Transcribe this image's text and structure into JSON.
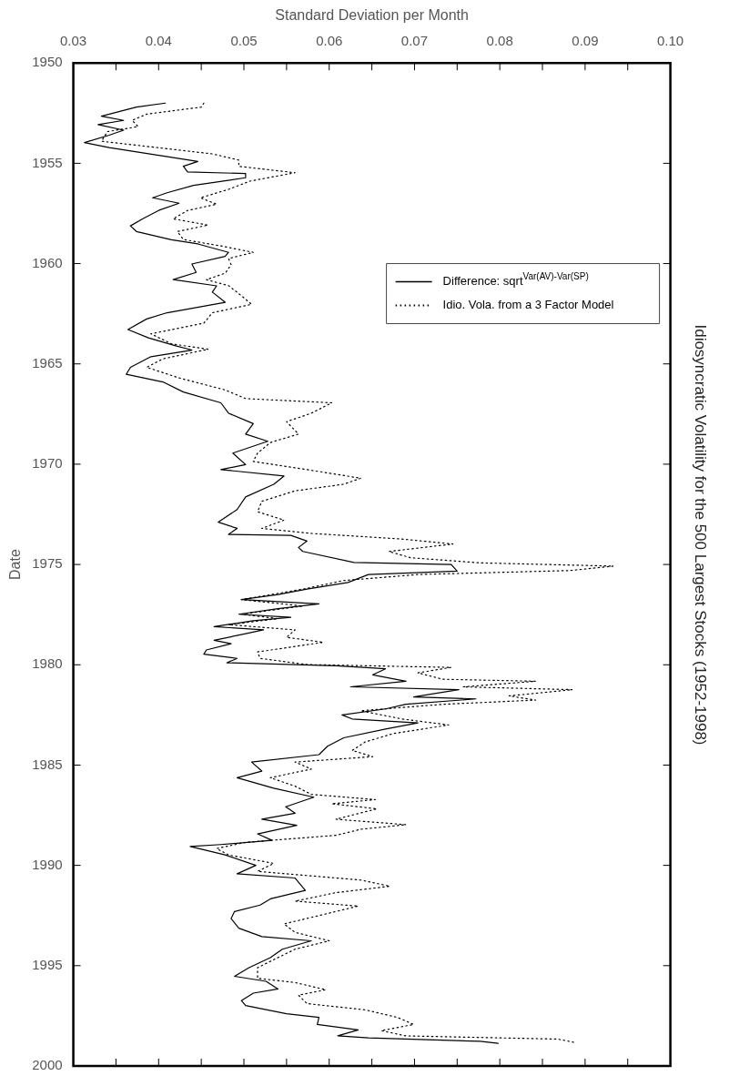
{
  "chart_data": {
    "type": "line",
    "title": "Idiosyncratic Volatility for the 500 Largest Stocks (1952-1998)",
    "xlabel": "Standard Deviation per Month",
    "ylabel": "Date",
    "ylim": [
      2000,
      1950
    ],
    "yticks": [
      1950,
      1955,
      1960,
      1965,
      1970,
      1975,
      1980,
      1985,
      1990,
      1995,
      2000
    ],
    "xlim": [
      0.03,
      0.1
    ],
    "xticks": [
      0.03,
      {
        "value": 0.035,
        "label": null
      },
      0.04,
      {
        "value": 0.045,
        "label": null
      },
      0.05,
      {
        "value": 0.055,
        "label": null
      },
      0.06,
      {
        "value": 0.065,
        "label": null
      },
      0.07,
      {
        "value": 0.075,
        "label": null
      },
      0.08,
      {
        "value": 0.085,
        "label": null
      },
      0.09,
      {
        "value": 0.095,
        "label": null
      },
      {
        "value": 0.1,
        "label": "0.10"
      }
    ],
    "legend": "top right",
    "marker": "none",
    "series": [
      {
        "name": "Difference: sqrt$^{Var(AV)-Var(SP)}$",
        "color": "#000000",
        "line_style": "solid",
        "values": [
          1952.0,
          1952.2,
          1952.65,
          1952.86,
          1953.07,
          1953.35,
          1953.6,
          1953.97,
          1954.22,
          1954.68,
          1954.91,
          1955.15,
          1955.43,
          1955.51,
          1955.72,
          1956.1,
          1956.47,
          1956.72,
          1956.99,
          1957.35,
          1957.77,
          1958.12,
          1958.4,
          1958.81,
          1959.02,
          1959.44,
          1959.64,
          1960.02,
          1960.44,
          1960.8,
          1961.11,
          1961.42,
          1961.93,
          1962.45,
          1962.76,
          1963.29,
          1963.7,
          1964.1,
          1964.31,
          1964.64,
          1965.17,
          1965.52,
          1965.9,
          1966.4,
          1966.94,
          1967.46,
          1967.98,
          1968.5,
          1968.86,
          1969.45,
          1970.02,
          1970.27,
          1970.59,
          1971.0,
          1971.63,
          1972.26,
          1972.89,
          1973.2,
          1973.5,
          1973.55,
          1973.83,
          1974.15,
          1974.35,
          1974.9,
          1975.0,
          1975.33,
          1975.5,
          1975.9,
          1976.23,
          1976.5,
          1976.75,
          1976.96,
          1977.2,
          1977.48,
          1977.63,
          1977.8,
          1978.1,
          1978.26,
          1978.45,
          1978.78,
          1978.95,
          1979.26,
          1979.47,
          1979.68,
          1979.9,
          1980.05,
          1980.2,
          1980.5,
          1980.82,
          1981.1,
          1981.24,
          1981.6,
          1981.7,
          1981.97,
          1982.2,
          1982.5,
          1982.7,
          1982.9,
          1983.2,
          1983.64,
          1984.06,
          1984.48,
          1984.85,
          1985.3,
          1985.63,
          1986.15,
          1986.6,
          1987.08,
          1987.4,
          1987.7,
          1988.0,
          1988.43,
          1988.75,
          1988.96,
          1989.06,
          1989.48,
          1990.0,
          1990.42,
          1990.63,
          1991.25,
          1991.67,
          1991.98,
          1992.3,
          1992.65,
          1993.13,
          1993.55,
          1993.76,
          1994.18,
          1994.6,
          1995.1,
          1995.53,
          1995.78,
          1996.16,
          1996.37,
          1996.74,
          1996.99,
          1997.4,
          1997.58,
          1997.93,
          1998.2,
          1998.5,
          1998.6,
          1998.77,
          1998.87
        ],
        "x": [
          0.0408,
          0.0374,
          0.0333,
          0.0359,
          0.0329,
          0.0359,
          0.0342,
          0.0313,
          0.0342,
          0.0412,
          0.0446,
          0.0429,
          0.0434,
          0.0502,
          0.0502,
          0.0441,
          0.041,
          0.0393,
          0.0424,
          0.04,
          0.0381,
          0.0367,
          0.0374,
          0.0415,
          0.0446,
          0.0482,
          0.0478,
          0.0439,
          0.0444,
          0.0417,
          0.0468,
          0.0463,
          0.0478,
          0.041,
          0.0386,
          0.0364,
          0.0388,
          0.042,
          0.0439,
          0.0391,
          0.0367,
          0.0362,
          0.0405,
          0.0429,
          0.0473,
          0.0482,
          0.0511,
          0.0502,
          0.0528,
          0.0487,
          0.0502,
          0.0473,
          0.0547,
          0.0535,
          0.0502,
          0.0492,
          0.047,
          0.0492,
          0.0482,
          0.0555,
          0.0574,
          0.0564,
          0.0569,
          0.0629,
          0.0743,
          0.075,
          0.0646,
          0.0622,
          0.0574,
          0.054,
          0.0497,
          0.0588,
          0.054,
          0.0494,
          0.0555,
          0.0511,
          0.0465,
          0.0523,
          0.0502,
          0.0465,
          0.0485,
          0.0456,
          0.0453,
          0.0492,
          0.048,
          0.0608,
          0.0666,
          0.0651,
          0.069,
          0.0625,
          0.0752,
          0.0699,
          0.0772,
          0.069,
          0.0666,
          0.0615,
          0.0627,
          0.0704,
          0.0666,
          0.0617,
          0.0598,
          0.0588,
          0.0509,
          0.0521,
          0.0492,
          0.0535,
          0.0582,
          0.0549,
          0.056,
          0.0521,
          0.0562,
          0.0516,
          0.0533,
          0.0473,
          0.0437,
          0.0478,
          0.0514,
          0.0492,
          0.056,
          0.0572,
          0.0531,
          0.0519,
          0.0489,
          0.0485,
          0.0494,
          0.0521,
          0.0579,
          0.0545,
          0.0531,
          0.0506,
          0.0489,
          0.0526,
          0.054,
          0.0511,
          0.0497,
          0.0502,
          0.055,
          0.0588,
          0.0586,
          0.0634,
          0.061,
          0.0646,
          0.0777,
          0.0798
        ]
      },
      {
        "name": "Idio. Vola. from a 3 Factor Model",
        "color": "#000000",
        "line_style": "dotted",
        "values": [
          1952.0,
          1952.2,
          1952.55,
          1952.86,
          1953.17,
          1953.42,
          1953.9,
          1954.2,
          1954.53,
          1954.84,
          1955.15,
          1955.47,
          1955.89,
          1956.3,
          1956.72,
          1957.04,
          1957.35,
          1957.77,
          1958.08,
          1958.4,
          1958.8,
          1959.12,
          1959.44,
          1959.75,
          1960.06,
          1960.48,
          1960.8,
          1961.1,
          1961.6,
          1962.03,
          1962.45,
          1962.97,
          1963.5,
          1964.0,
          1964.27,
          1964.75,
          1965.17,
          1965.7,
          1966.3,
          1966.73,
          1966.94,
          1967.46,
          1967.88,
          1968.5,
          1968.92,
          1969.45,
          1969.86,
          1970.18,
          1970.5,
          1970.7,
          1971.0,
          1971.33,
          1971.85,
          1972.37,
          1972.79,
          1973.2,
          1973.45,
          1973.73,
          1973.98,
          1974.35,
          1974.66,
          1974.92,
          1975.08,
          1975.3,
          1975.5,
          1975.8,
          1976.23,
          1976.75,
          1977.07,
          1977.48,
          1977.7,
          1978.0,
          1978.26,
          1978.63,
          1978.88,
          1979.36,
          1979.68,
          1979.99,
          1980.13,
          1980.4,
          1980.72,
          1980.82,
          1981.1,
          1981.24,
          1981.55,
          1981.76,
          1981.97,
          1982.29,
          1982.7,
          1983.0,
          1983.43,
          1983.85,
          1984.27,
          1984.58,
          1984.85,
          1985.2,
          1985.63,
          1986.05,
          1986.46,
          1986.72,
          1986.93,
          1987.18,
          1987.7,
          1987.97,
          1988.2,
          1988.5,
          1988.85,
          1989.16,
          1989.48,
          1989.9,
          1990.3,
          1990.73,
          1991.04,
          1991.36,
          1991.78,
          1992.03,
          1992.4,
          1992.92,
          1993.34,
          1993.76,
          1994.18,
          1994.7,
          1995.1,
          1995.63,
          1995.84,
          1996.2,
          1996.47,
          1996.89,
          1997.2,
          1997.58,
          1997.93,
          1998.24,
          1998.5,
          1998.66,
          1998.83
        ],
        "x": [
          0.0453,
          0.045,
          0.0386,
          0.0369,
          0.0376,
          0.034,
          0.0333,
          0.0395,
          0.0463,
          0.0494,
          0.0494,
          0.056,
          0.0507,
          0.0482,
          0.0449,
          0.0468,
          0.0434,
          0.0417,
          0.0458,
          0.0422,
          0.0429,
          0.0473,
          0.0511,
          0.0482,
          0.0485,
          0.0478,
          0.0456,
          0.0482,
          0.0497,
          0.0509,
          0.0463,
          0.0453,
          0.0391,
          0.0415,
          0.0458,
          0.0405,
          0.0386,
          0.0424,
          0.0478,
          0.0502,
          0.0603,
          0.0579,
          0.055,
          0.0564,
          0.0531,
          0.0516,
          0.0511,
          0.056,
          0.0608,
          0.0637,
          0.0617,
          0.056,
          0.0521,
          0.0516,
          0.0547,
          0.0521,
          0.0579,
          0.0685,
          0.0745,
          0.067,
          0.0695,
          0.0777,
          0.0933,
          0.0883,
          0.0704,
          0.0617,
          0.0569,
          0.0497,
          0.0569,
          0.0497,
          0.054,
          0.0482,
          0.056,
          0.055,
          0.0593,
          0.0516,
          0.0519,
          0.0574,
          0.0743,
          0.0704,
          0.0733,
          0.0842,
          0.0757,
          0.0885,
          0.0811,
          0.0842,
          0.0733,
          0.0637,
          0.0685,
          0.074,
          0.0675,
          0.0642,
          0.0627,
          0.0651,
          0.056,
          0.0579,
          0.0531,
          0.056,
          0.0579,
          0.0654,
          0.0603,
          0.0656,
          0.0608,
          0.069,
          0.0637,
          0.0608,
          0.0502,
          0.0468,
          0.0482,
          0.0535,
          0.0516,
          0.0637,
          0.0671,
          0.0608,
          0.056,
          0.0634,
          0.0598,
          0.0547,
          0.056,
          0.06,
          0.056,
          0.0535,
          0.0516,
          0.0516,
          0.056,
          0.0596,
          0.0564,
          0.0574,
          0.0642,
          0.068,
          0.0699,
          0.0661,
          0.069,
          0.0868,
          0.0888
        ]
      }
    ]
  }
}
